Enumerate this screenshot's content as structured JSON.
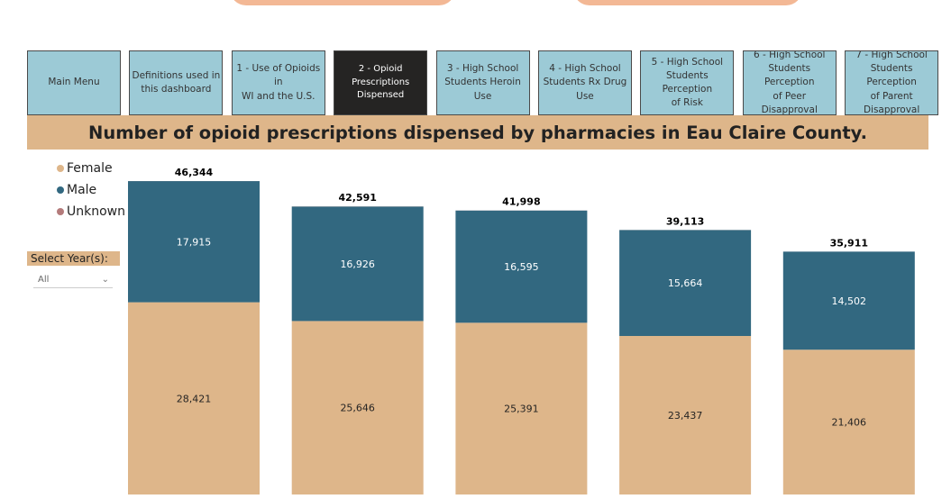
{
  "nav": {
    "items": [
      {
        "label": "Main Menu",
        "active": false
      },
      {
        "label": "Definitions used in\nthis dashboard",
        "active": false
      },
      {
        "label": "1 - Use of Opioids in\nWI and the U.S.",
        "active": false
      },
      {
        "label": "2 - Opioid\nPrescriptions\nDispensed",
        "active": true
      },
      {
        "label": "3 - High School\nStudents Heroin Use",
        "active": false
      },
      {
        "label": "4 - High School\nStudents Rx Drug\nUse",
        "active": false
      },
      {
        "label": "5 - High School\nStudents Perception\nof Risk",
        "active": false
      },
      {
        "label": "6 - High School\nStudents Perception\nof Peer Disapproval",
        "active": false
      },
      {
        "label": "7 - High School\nStudents Perception\nof Parent\nDisapproval",
        "active": false
      }
    ]
  },
  "title": "Number of opioid prescriptions dispensed by pharmacies in Eau Claire County.",
  "legend": [
    {
      "name": "Female",
      "color": "#deb68a"
    },
    {
      "name": "Male",
      "color": "#326880"
    },
    {
      "name": "Unknown",
      "color": "#b47b7b"
    }
  ],
  "slicer": {
    "label": "Select Year(s):",
    "value": "All",
    "icon": "chevron-down-icon"
  },
  "chart_data": {
    "type": "bar",
    "stacked": true,
    "categories": [
      "",
      "",
      "",
      "",
      ""
    ],
    "series": [
      {
        "name": "Female",
        "color": "#deb68a",
        "values": [
          28421,
          25646,
          25391,
          23437,
          21406
        ],
        "labels": [
          "28,421",
          "25,646",
          "25,391",
          "23,437",
          "21,406"
        ]
      },
      {
        "name": "Male",
        "color": "#326880",
        "values": [
          17915,
          16926,
          16595,
          15664,
          14502
        ],
        "labels": [
          "17,915",
          "16,926",
          "16,595",
          "15,664",
          "14,502"
        ]
      },
      {
        "name": "Unknown",
        "color": "#b47b7b",
        "values": [
          8,
          19,
          12,
          12,
          3
        ]
      }
    ],
    "totals": [
      46344,
      42591,
      41998,
      39113,
      35911
    ],
    "total_labels": [
      "46,344",
      "42,591",
      "41,998",
      "39,113",
      "35,911"
    ],
    "ylim": [
      0,
      46344
    ],
    "grid": false,
    "legend_position": "top-left"
  }
}
